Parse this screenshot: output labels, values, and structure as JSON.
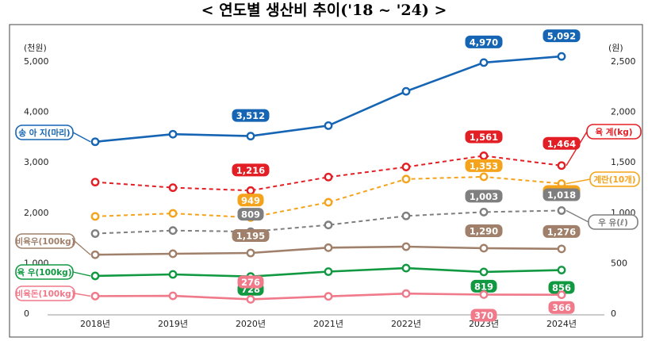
{
  "title": "< 연도별 생산비 추이('18 ~ '24) >",
  "chart_data": {
    "type": "line",
    "categories": [
      "2018년",
      "2019년",
      "2020년",
      "2021년",
      "2022년",
      "2023년",
      "2024년"
    ],
    "left_axis": {
      "unit_label": "(천원)",
      "ticks": [
        "0",
        "1,000",
        "2,000",
        "3,000",
        "4,000",
        "5,000"
      ],
      "range": [
        0,
        5000
      ]
    },
    "right_axis": {
      "unit_label": "(원)",
      "ticks": [
        "0",
        "500",
        "1,000",
        "1,500",
        "2,000",
        "2,500"
      ],
      "range": [
        0,
        2500
      ]
    },
    "grid": false,
    "series": [
      {
        "name": "송 아 지(마리)",
        "axis": "left",
        "color": "#1565b4",
        "dash": false,
        "values": [
          3400,
          3550,
          3512,
          3720,
          4400,
          4970,
          5092
        ],
        "labels": [
          null,
          null,
          "3,512",
          null,
          null,
          "4,970",
          "5,092"
        ]
      },
      {
        "name": "육 계(kg)",
        "axis": "right",
        "color": "#e31e24",
        "dash": true,
        "values": [
          1300,
          1245,
          1216,
          1350,
          1450,
          1561,
          1464
        ],
        "labels": [
          null,
          null,
          "1,216",
          null,
          null,
          "1,561",
          "1,464"
        ]
      },
      {
        "name": "계란(10개)",
        "axis": "right",
        "color": "#f5a31a",
        "dash": true,
        "values": [
          960,
          990,
          949,
          1100,
          1330,
          1353,
          1285
        ],
        "labels": [
          null,
          null,
          "949",
          null,
          null,
          "1,353",
          "1,285"
        ]
      },
      {
        "name": "우 유(ℓ)",
        "axis": "right",
        "color": "#7f7f7f",
        "dash": true,
        "values": [
          790,
          820,
          809,
          875,
          965,
          1003,
          1018
        ],
        "labels": [
          null,
          null,
          "809",
          null,
          null,
          "1,003",
          "1,018"
        ]
      },
      {
        "name": "비육우(100kg)",
        "axis": "left",
        "color": "#a0806a",
        "dash": false,
        "values": [
          1160,
          1180,
          1195,
          1300,
          1320,
          1290,
          1276
        ],
        "labels": [
          null,
          null,
          "1,195",
          null,
          null,
          "1,290",
          "1,276"
        ]
      },
      {
        "name": "육 우(100kg)",
        "axis": "left",
        "color": "#119942",
        "dash": false,
        "values": [
          740,
          770,
          728,
          825,
          895,
          819,
          856
        ],
        "labels": [
          null,
          null,
          "728",
          null,
          null,
          "819",
          "856"
        ]
      },
      {
        "name": "비육돈(100kg)",
        "axis": "left",
        "color": "#f0798a",
        "dash": false,
        "values": [
          340,
          345,
          276,
          335,
          390,
          370,
          366
        ],
        "labels": [
          null,
          null,
          "276",
          null,
          null,
          "370",
          "366"
        ]
      }
    ]
  }
}
